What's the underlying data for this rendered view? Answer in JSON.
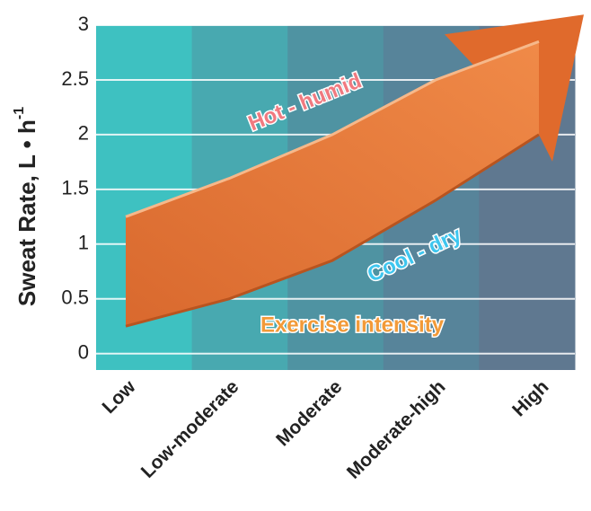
{
  "chart_data": {
    "type": "band-arrow",
    "y_label": "Sweat Rate, L • h",
    "y_label_sup": "-1",
    "categories": [
      "Low",
      "Low-moderate",
      "Moderate",
      "Moderate-high",
      "High"
    ],
    "lower": [
      0.25,
      0.5,
      0.85,
      1.4,
      2.0
    ],
    "upper": [
      1.25,
      1.6,
      2.0,
      2.5,
      2.85
    ],
    "color": "#e8783a",
    "ylim": [
      -0.15,
      3.0
    ],
    "yticks": [
      0,
      0.5,
      1.0,
      1.5,
      2.0,
      2.5,
      3.0
    ],
    "grid": true,
    "annotations": {
      "upper": "Hot - humid",
      "lower": "Cool - dry",
      "axis": "Exercise intensity"
    }
  }
}
